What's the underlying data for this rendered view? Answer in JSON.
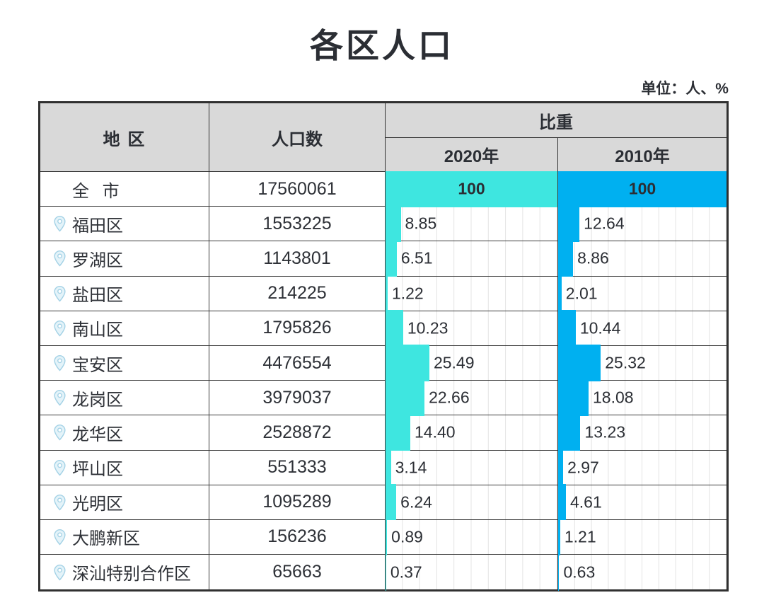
{
  "page": {
    "title": "各区人口",
    "unit_note": "单位：人、%"
  },
  "table": {
    "headers": {
      "region": "地  区",
      "population": "人口数",
      "proportion": "比重",
      "year_2020": "2020年",
      "year_2010": "2010年"
    },
    "rows": [
      {
        "region": "全 市",
        "population": "17560061",
        "pct_2020": 100,
        "pct_2010": 100,
        "label_2020": "100",
        "label_2010": "100",
        "is_total": true
      },
      {
        "region": "福田区",
        "population": "1553225",
        "pct_2020": 8.85,
        "pct_2010": 12.64,
        "label_2020": "8.85",
        "label_2010": "12.64",
        "is_total": false
      },
      {
        "region": "罗湖区",
        "population": "1143801",
        "pct_2020": 6.51,
        "pct_2010": 8.86,
        "label_2020": "6.51",
        "label_2010": "8.86",
        "is_total": false
      },
      {
        "region": "盐田区",
        "population": "214225",
        "pct_2020": 1.22,
        "pct_2010": 2.01,
        "label_2020": "1.22",
        "label_2010": "2.01",
        "is_total": false
      },
      {
        "region": "南山区",
        "population": "1795826",
        "pct_2020": 10.23,
        "pct_2010": 10.44,
        "label_2020": "10.23",
        "label_2010": "10.44",
        "is_total": false
      },
      {
        "region": "宝安区",
        "population": "4476554",
        "pct_2020": 25.49,
        "pct_2010": 25.32,
        "label_2020": "25.49",
        "label_2010": "25.32",
        "is_total": false
      },
      {
        "region": "龙岗区",
        "population": "3979037",
        "pct_2020": 22.66,
        "pct_2010": 18.08,
        "label_2020": "22.66",
        "label_2010": "18.08",
        "is_total": false
      },
      {
        "region": "龙华区",
        "population": "2528872",
        "pct_2020": 14.4,
        "pct_2010": 13.23,
        "label_2020": "14.40",
        "label_2010": "13.23",
        "is_total": false
      },
      {
        "region": "坪山区",
        "population": "551333",
        "pct_2020": 3.14,
        "pct_2010": 2.97,
        "label_2020": "3.14",
        "label_2010": "2.97",
        "is_total": false
      },
      {
        "region": "光明区",
        "population": "1095289",
        "pct_2020": 6.24,
        "pct_2010": 4.61,
        "label_2020": "6.24",
        "label_2010": "4.61",
        "is_total": false
      },
      {
        "region": "大鹏新区",
        "population": "156236",
        "pct_2020": 0.89,
        "pct_2010": 1.21,
        "label_2020": "0.89",
        "label_2010": "1.21",
        "is_total": false
      },
      {
        "region": "深汕特别合作区",
        "population": "65663",
        "pct_2020": 0.37,
        "pct_2010": 0.63,
        "label_2020": "0.37",
        "label_2010": "0.63",
        "is_total": false
      }
    ]
  },
  "colors": {
    "bar_2020": "#3ee6e0",
    "bar_2010": "#00b0f0",
    "header_bg": "#d9d9d9",
    "pin_stroke": "#a4d2e6",
    "pin_fill": "#e4f3f9",
    "text": "#2b2e34"
  },
  "icons": {
    "row_marker": "location-pin-icon"
  },
  "chart_data": {
    "type": "bar",
    "orientation": "horizontal",
    "title": "各区人口",
    "unit": "人、%",
    "categories": [
      "全市",
      "福田区",
      "罗湖区",
      "盐田区",
      "南山区",
      "宝安区",
      "龙岗区",
      "龙华区",
      "坪山区",
      "光明区",
      "大鹏新区",
      "深汕特别合作区"
    ],
    "series": [
      {
        "name": "人口数",
        "values": [
          17560061,
          1553225,
          1143801,
          214225,
          1795826,
          4476554,
          3979037,
          2528872,
          551333,
          1095289,
          156236,
          65663
        ]
      },
      {
        "name": "比重 2020年",
        "values": [
          100,
          8.85,
          6.51,
          1.22,
          10.23,
          25.49,
          22.66,
          14.4,
          3.14,
          6.24,
          0.89,
          0.37
        ]
      },
      {
        "name": "比重 2010年",
        "values": [
          100,
          12.64,
          8.86,
          2.01,
          10.44,
          25.32,
          18.08,
          13.23,
          2.97,
          4.61,
          1.21,
          0.63
        ]
      }
    ],
    "xlim": [
      0,
      100
    ],
    "grid": true,
    "legend_position": "column-headers"
  }
}
